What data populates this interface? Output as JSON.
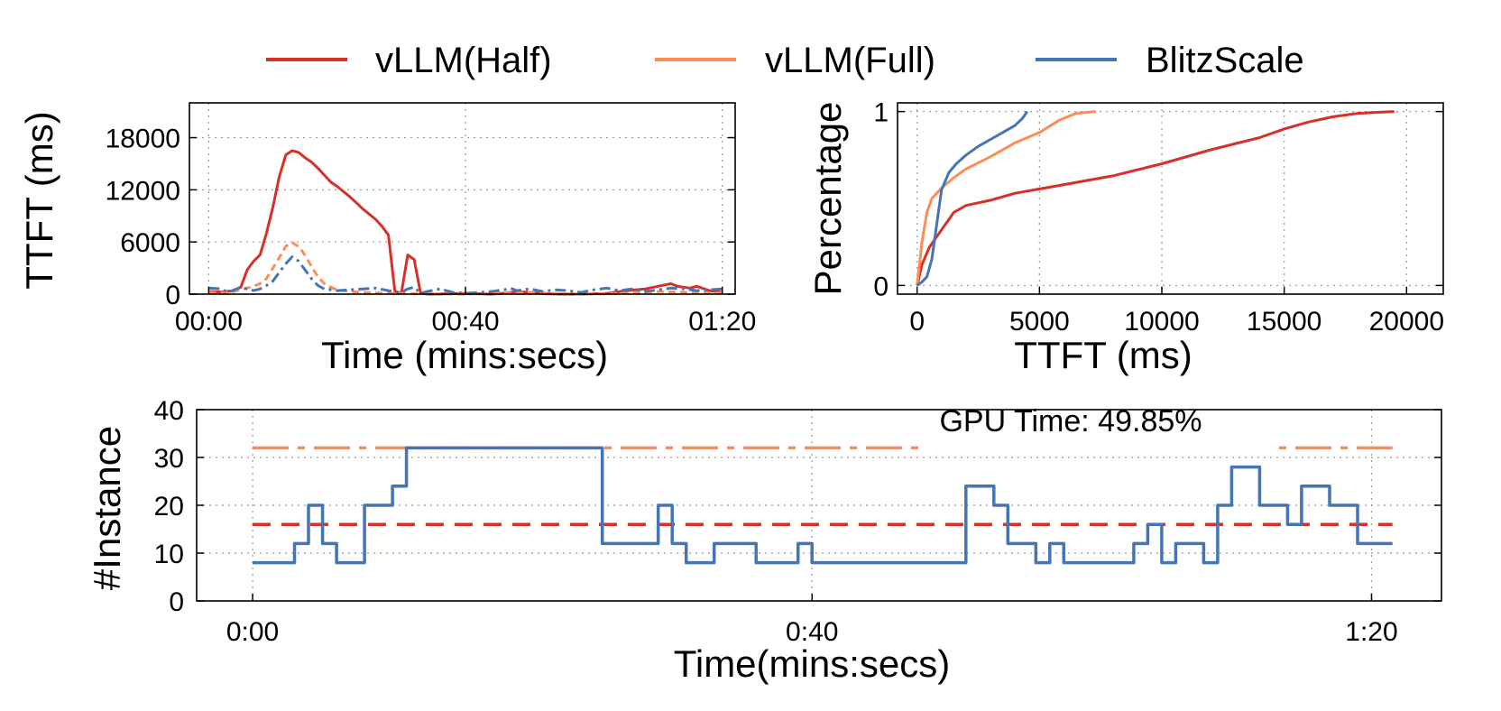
{
  "chart_data": [
    {
      "id": "ttft-over-time",
      "type": "line",
      "title": "",
      "xlabel": "Time (mins:secs)",
      "ylabel": "TTFT (ms)",
      "xlim": [
        -3,
        82
      ],
      "ylim": [
        0,
        22000
      ],
      "xticks": [
        0,
        40,
        80
      ],
      "xticklabels": [
        "00:00",
        "00:40",
        "01:20"
      ],
      "yticks": [
        0,
        6000,
        12000,
        18000
      ],
      "yticklabels": [
        "0",
        "6000",
        "12000",
        "18000"
      ],
      "grid": true,
      "series": [
        {
          "name": "vLLM(Half)",
          "color": "#d73027",
          "dash": "solid",
          "x": [
            0,
            2,
            4,
            5,
            6,
            7,
            8,
            9,
            10,
            11,
            12,
            13,
            14,
            15,
            16,
            17,
            18,
            19,
            20,
            21,
            22,
            23,
            24,
            25,
            26,
            27,
            28,
            29,
            30,
            31,
            32,
            33,
            34,
            35,
            36,
            37,
            40,
            44,
            46,
            48,
            50,
            52,
            55,
            58,
            62,
            65,
            68,
            70,
            72,
            73,
            75,
            76,
            78,
            80
          ],
          "y": [
            300,
            250,
            400,
            800,
            2800,
            3800,
            4500,
            7000,
            10000,
            13500,
            16000,
            16500,
            16300,
            15700,
            15200,
            14500,
            13700,
            12900,
            12400,
            11800,
            11200,
            10500,
            9800,
            9200,
            8600,
            7800,
            6800,
            300,
            100,
            4500,
            4000,
            150,
            0,
            0,
            0,
            50,
            80,
            0,
            100,
            300,
            200,
            50,
            0,
            0,
            80,
            400,
            600,
            900,
            1200,
            900,
            700,
            900,
            400,
            200
          ]
        },
        {
          "name": "vLLM(Full)",
          "color": "#fc8d59",
          "dash": "8 5",
          "x": [
            0,
            2,
            4,
            5,
            6,
            7,
            8,
            9,
            10,
            11,
            12,
            13,
            14,
            15,
            16,
            17,
            18,
            19,
            20,
            22,
            24,
            26,
            28,
            30,
            33,
            36,
            40,
            45,
            50,
            55,
            60,
            65,
            70,
            75,
            80
          ],
          "y": [
            200,
            150,
            300,
            500,
            700,
            900,
            1200,
            1800,
            3000,
            4200,
            5500,
            5900,
            5500,
            4500,
            3200,
            2000,
            1200,
            800,
            500,
            300,
            200,
            150,
            100,
            80,
            50,
            20,
            0,
            100,
            200,
            50,
            0,
            100,
            300,
            200,
            100
          ]
        },
        {
          "name": "BlitzScale",
          "color": "#4575b4",
          "dash": "12 5 3 5",
          "x": [
            0,
            2,
            3,
            4,
            5,
            6,
            7,
            8,
            9,
            10,
            11,
            12,
            13,
            14,
            15,
            16,
            17,
            18,
            20,
            22,
            24,
            26,
            28,
            30,
            31,
            32,
            33,
            34,
            36,
            38,
            40,
            42,
            44,
            46,
            47,
            48,
            50,
            52,
            54,
            56,
            58,
            60,
            62,
            64,
            66,
            68,
            70,
            72,
            74,
            76,
            78,
            80
          ],
          "y": [
            700,
            600,
            200,
            500,
            800,
            600,
            400,
            600,
            1000,
            1500,
            2500,
            3500,
            4300,
            3800,
            2800,
            1800,
            1000,
            600,
            400,
            500,
            600,
            700,
            400,
            200,
            600,
            800,
            100,
            300,
            600,
            200,
            100,
            200,
            300,
            500,
            700,
            400,
            600,
            300,
            500,
            400,
            200,
            500,
            700,
            400,
            600,
            300,
            500,
            700,
            600,
            400,
            500,
            600
          ]
        }
      ]
    },
    {
      "id": "ttft-cdf",
      "type": "line",
      "title": "",
      "xlabel": "TTFT (ms)",
      "ylabel": "Percentage",
      "xlim": [
        -800,
        21500
      ],
      "ylim": [
        -0.05,
        1.05
      ],
      "xticks": [
        0,
        5000,
        10000,
        15000,
        20000
      ],
      "xticklabels": [
        "0",
        "5000",
        "10000",
        "15000",
        "20000"
      ],
      "yticks": [
        0,
        1
      ],
      "yticklabels": [
        "0",
        "1"
      ],
      "grid": true,
      "series": [
        {
          "name": "vLLM(Half)",
          "color": "#d73027",
          "dash": "solid",
          "x": [
            0,
            200,
            500,
            1000,
            1500,
            2000,
            3000,
            4000,
            6000,
            8000,
            10000,
            12000,
            14000,
            15000,
            16000,
            17000,
            18000,
            19500
          ],
          "y": [
            0,
            0.12,
            0.22,
            0.32,
            0.42,
            0.46,
            0.49,
            0.53,
            0.58,
            0.63,
            0.7,
            0.78,
            0.85,
            0.9,
            0.94,
            0.97,
            0.99,
            1.0
          ]
        },
        {
          "name": "vLLM(Full)",
          "color": "#fc8d59",
          "dash": "solid",
          "x": [
            0,
            200,
            400,
            600,
            800,
            1000,
            1500,
            2000,
            3000,
            4000,
            5000,
            5800,
            6500,
            7300
          ],
          "y": [
            0,
            0.25,
            0.42,
            0.5,
            0.53,
            0.56,
            0.62,
            0.67,
            0.74,
            0.82,
            0.88,
            0.95,
            0.99,
            1.0
          ]
        },
        {
          "name": "BlitzScale",
          "color": "#4575b4",
          "dash": "solid",
          "x": [
            0,
            200,
            400,
            600,
            800,
            1000,
            1300,
            1600,
            2000,
            2500,
            3000,
            3500,
            4000,
            4300,
            4500
          ],
          "y": [
            0,
            0.02,
            0.05,
            0.15,
            0.35,
            0.55,
            0.65,
            0.7,
            0.75,
            0.8,
            0.84,
            0.88,
            0.92,
            0.96,
            1.0
          ]
        }
      ]
    },
    {
      "id": "instances-over-time",
      "type": "line",
      "title": "",
      "xlabel": "Time(mins:secs)",
      "ylabel": "#Instance",
      "xlim": [
        -4,
        85
      ],
      "ylim": [
        0,
        40
      ],
      "xticks": [
        0,
        40,
        80
      ],
      "xticklabels": [
        "0:00",
        "0:40",
        "1:20"
      ],
      "yticks": [
        0,
        10,
        20,
        30,
        40
      ],
      "yticklabels": [
        "0",
        "10",
        "20",
        "30",
        "40"
      ],
      "grid": true,
      "annotation": "GPU Time: 49.85%",
      "series": [
        {
          "name": "vLLM(Full)",
          "color": "#fc8d59",
          "dash": "40 10 8 10",
          "step": false,
          "x": [
            0,
            81.5
          ],
          "y": [
            32,
            32
          ]
        },
        {
          "name": "vLLM(Half)",
          "color": "#d73027",
          "dash": "20 12",
          "step": false,
          "x": [
            0,
            81.5
          ],
          "y": [
            16,
            16
          ]
        },
        {
          "name": "BlitzScale",
          "color": "#4575b4",
          "dash": "solid",
          "step": true,
          "x": [
            0,
            3,
            4,
            5,
            6,
            8,
            10,
            11,
            12,
            25,
            29,
            30,
            31,
            32,
            33,
            34,
            36,
            37,
            39,
            40,
            51,
            53,
            54,
            56,
            57,
            58,
            63,
            64,
            65,
            66,
            67,
            68,
            69,
            70,
            72,
            73,
            74,
            75,
            77,
            79,
            80,
            81.5
          ],
          "y": [
            8,
            12,
            20,
            12,
            8,
            20,
            24,
            32,
            32,
            12,
            20,
            12,
            8,
            8,
            12,
            12,
            8,
            8,
            12,
            8,
            24,
            20,
            12,
            8,
            12,
            8,
            12,
            16,
            8,
            12,
            12,
            8,
            20,
            28,
            20,
            20,
            16,
            24,
            20,
            12,
            12,
            12
          ]
        }
      ]
    }
  ],
  "legend": [
    {
      "name": "vLLM(Half)",
      "color": "#d73027"
    },
    {
      "name": "vLLM(Full)",
      "color": "#fc8d59"
    },
    {
      "name": "BlitzScale",
      "color": "#4575b4"
    }
  ]
}
